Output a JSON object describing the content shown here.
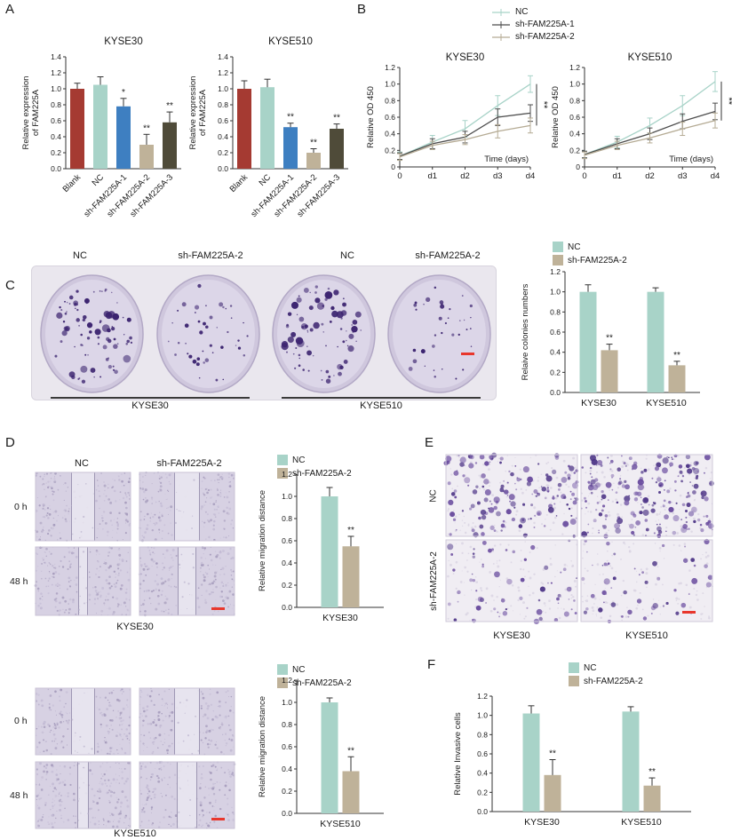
{
  "figure": {
    "panels": {
      "A": "A",
      "B": "B",
      "C": "C",
      "D": "D",
      "E": "E",
      "F": "F"
    }
  },
  "colors": {
    "blank": "#a53a32",
    "nc": "#a8d3c8",
    "sh1": "#3e7fc1",
    "sh2": "#bfb299",
    "sh3": "#4f4b39",
    "line_nc": "#a8d3c8",
    "line_sh1": "#4d4d4d",
    "line_sh2": "#b5ab94",
    "scalebar": "#e8372c"
  },
  "panel_c": {
    "col_labels": [
      "NC",
      "sh-FAM225A-2",
      "NC",
      "sh-FAM225A-2"
    ],
    "group_labels": [
      "KYSE30",
      "KYSE510"
    ]
  },
  "panel_d_top": {
    "col_labels": [
      "NC",
      "sh-FAM225A-2"
    ],
    "row_labels": [
      "0 h",
      "48 h"
    ],
    "cell_line": "KYSE30"
  },
  "panel_d_bottom": {
    "row_labels": [
      "0 h",
      "48 h"
    ],
    "cell_line": "KYSE510"
  },
  "panel_e": {
    "row_labels": [
      "NC",
      "sh-FAM225A-2"
    ],
    "col_labels": [
      "KYSE30",
      "KYSE510"
    ]
  },
  "chart_data": [
    {
      "id": "expression_kyse30",
      "type": "bar",
      "title": "KYSE30",
      "ylabel": "Relative expression\nof FAM225A",
      "categories": [
        "Blank",
        "NC",
        "sh-FAM225A-1",
        "sh-FAM225A-2",
        "sh-FAM225A-3"
      ],
      "values": [
        1.0,
        1.05,
        0.78,
        0.3,
        0.58
      ],
      "errors": [
        0.07,
        0.1,
        0.1,
        0.13,
        0.13
      ],
      "sig": [
        "",
        "",
        "*",
        "**",
        "**"
      ],
      "bar_colors": [
        "blank",
        "nc",
        "sh1",
        "sh2",
        "sh3"
      ],
      "ylim": [
        0,
        1.4
      ],
      "ytick_step": 0.2
    },
    {
      "id": "expression_kyse510",
      "type": "bar",
      "title": "KYSE510",
      "ylabel": "Relative expression\nof FAM225A",
      "categories": [
        "Blank",
        "NC",
        "sh-FAM225A-1",
        "sh-FAM225A-2",
        "sh-FAM225A-3"
      ],
      "values": [
        1.0,
        1.02,
        0.52,
        0.2,
        0.5
      ],
      "errors": [
        0.1,
        0.1,
        0.05,
        0.05,
        0.06
      ],
      "sig": [
        "",
        "",
        "**",
        "**",
        "**"
      ],
      "bar_colors": [
        "blank",
        "nc",
        "sh1",
        "sh2",
        "sh3"
      ],
      "ylim": [
        0,
        1.4
      ],
      "ytick_step": 0.2
    },
    {
      "id": "cck8_kyse30",
      "type": "line",
      "title": "KYSE30",
      "ylabel": "Relative OD 450",
      "xlabel": "Time (days)",
      "x": [
        "0",
        "d1",
        "d2",
        "d3",
        "d4"
      ],
      "ylim": [
        0,
        1.2
      ],
      "ytick_step": 0.2,
      "sig": "**",
      "series": [
        {
          "name": "NC",
          "color": "line_nc",
          "values": [
            0.13,
            0.3,
            0.46,
            0.74,
            1.0
          ],
          "errors": [
            0.05,
            0.08,
            0.1,
            0.12,
            0.1
          ]
        },
        {
          "name": "sh-FAM225A-1",
          "color": "line_sh1",
          "values": [
            0.13,
            0.28,
            0.36,
            0.6,
            0.65
          ],
          "errors": [
            0.04,
            0.06,
            0.07,
            0.1,
            0.1
          ]
        },
        {
          "name": "sh-FAM225A-2",
          "color": "line_sh2",
          "values": [
            0.12,
            0.26,
            0.33,
            0.43,
            0.5
          ],
          "errors": [
            0.04,
            0.05,
            0.06,
            0.08,
            0.09
          ]
        }
      ]
    },
    {
      "id": "cck8_kyse510",
      "type": "line",
      "title": "KYSE510",
      "ylabel": "Relative OD 450",
      "xlabel": "Time (days)",
      "x": [
        "0",
        "d1",
        "d2",
        "d3",
        "d4"
      ],
      "ylim": [
        0,
        1.2
      ],
      "ytick_step": 0.2,
      "sig": "**",
      "series": [
        {
          "name": "NC",
          "color": "line_nc",
          "values": [
            0.15,
            0.3,
            0.5,
            0.74,
            1.03
          ],
          "errors": [
            0.04,
            0.07,
            0.09,
            0.12,
            0.12
          ]
        },
        {
          "name": "sh-FAM225A-1",
          "color": "line_sh1",
          "values": [
            0.15,
            0.28,
            0.4,
            0.55,
            0.67
          ],
          "errors": [
            0.04,
            0.06,
            0.07,
            0.09,
            0.1
          ]
        },
        {
          "name": "sh-FAM225A-2",
          "color": "line_sh2",
          "values": [
            0.14,
            0.26,
            0.35,
            0.46,
            0.56
          ],
          "errors": [
            0.04,
            0.05,
            0.06,
            0.08,
            0.09
          ]
        }
      ]
    },
    {
      "id": "colonies",
      "type": "bar",
      "ylabel": "Relaive colonies numbers",
      "groups": [
        "KYSE30",
        "KYSE510"
      ],
      "ylim": [
        0,
        1.2
      ],
      "ytick_step": 0.2,
      "series": [
        {
          "name": "NC",
          "color": "nc",
          "values": [
            1.0,
            1.0
          ],
          "errors": [
            0.07,
            0.04
          ],
          "sig": [
            "",
            ""
          ]
        },
        {
          "name": "sh-FAM225A-2",
          "color": "sh2",
          "values": [
            0.42,
            0.27
          ],
          "errors": [
            0.06,
            0.04
          ],
          "sig": [
            "**",
            "**"
          ]
        }
      ]
    },
    {
      "id": "migration_kyse30",
      "type": "bar",
      "ylabel": "Relative migration distance",
      "groups": [
        "KYSE30"
      ],
      "ylim": [
        0,
        1.2
      ],
      "ytick_step": 0.2,
      "series": [
        {
          "name": "NC",
          "color": "nc",
          "values": [
            1.0
          ],
          "errors": [
            0.08
          ],
          "sig": [
            ""
          ]
        },
        {
          "name": "sh-FAM225A-2",
          "color": "sh2",
          "values": [
            0.55
          ],
          "errors": [
            0.09
          ],
          "sig": [
            "**"
          ]
        }
      ]
    },
    {
      "id": "migration_kyse510",
      "type": "bar",
      "ylabel": "Relative migration distance",
      "groups": [
        "KYSE510"
      ],
      "ylim": [
        0,
        1.2
      ],
      "ytick_step": 0.2,
      "series": [
        {
          "name": "NC",
          "color": "nc",
          "values": [
            1.0
          ],
          "errors": [
            0.04
          ],
          "sig": [
            ""
          ]
        },
        {
          "name": "sh-FAM225A-2",
          "color": "sh2",
          "values": [
            0.38
          ],
          "errors": [
            0.13
          ],
          "sig": [
            "**"
          ]
        }
      ]
    },
    {
      "id": "invasion",
      "type": "bar",
      "ylabel": "Relative Invasive cells",
      "groups": [
        "KYSE30",
        "KYSE510"
      ],
      "ylim": [
        0,
        1.2
      ],
      "ytick_step": 0.2,
      "series": [
        {
          "name": "NC",
          "color": "nc",
          "values": [
            1.02,
            1.04
          ],
          "errors": [
            0.08,
            0.05
          ],
          "sig": [
            "",
            ""
          ]
        },
        {
          "name": "sh-FAM225A-2",
          "color": "sh2",
          "values": [
            0.38,
            0.27
          ],
          "errors": [
            0.16,
            0.08
          ],
          "sig": [
            "**",
            "**"
          ]
        }
      ]
    }
  ]
}
